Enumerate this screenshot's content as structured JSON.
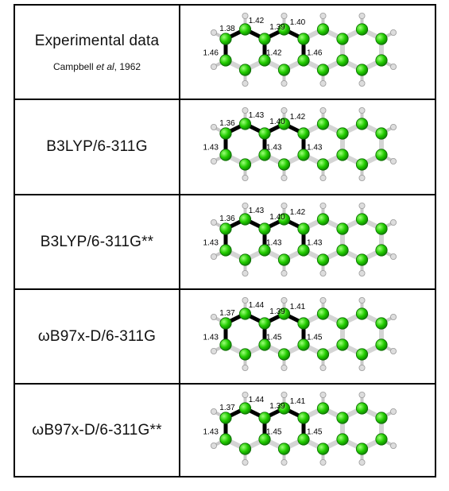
{
  "rows": [
    {
      "method": "Experimental data",
      "citation_author": "Campbell",
      "citation_etal": "et al",
      "citation_year": ", 1962",
      "bond_lengths": {
        "left_top": "1.38",
        "top_a": "1.42",
        "top_b": "1.39",
        "top_c": "1.40",
        "left_side": "1.46",
        "mid": "1.42",
        "right_side": "1.46"
      }
    },
    {
      "method": "B3LYP/6-311G",
      "bond_lengths": {
        "left_top": "1.36",
        "top_a": "1.43",
        "top_b": "1.40",
        "top_c": "1.42",
        "left_side": "1.43",
        "mid": "1.43",
        "right_side": "1.43"
      }
    },
    {
      "method": "B3LYP/6-311G**",
      "bond_lengths": {
        "left_top": "1.36",
        "top_a": "1.43",
        "top_b": "1.40",
        "top_c": "1.42",
        "left_side": "1.43",
        "mid": "1.43",
        "right_side": "1.43"
      }
    },
    {
      "method": "ωB97x-D/6-311G",
      "bond_lengths": {
        "left_top": "1.37",
        "top_a": "1.44",
        "top_b": "1.39",
        "top_c": "1.41",
        "left_side": "1.43",
        "mid": "1.45",
        "right_side": "1.45"
      }
    },
    {
      "method": "ωB97x-D/6-311G**",
      "bond_lengths": {
        "left_top": "1.37",
        "top_a": "1.44",
        "top_b": "1.39",
        "top_c": "1.41",
        "left_side": "1.43",
        "mid": "1.45",
        "right_side": "1.45"
      }
    }
  ],
  "colors": {
    "carbon": "#22cc00",
    "carbon_edge": "#0b6b00",
    "hydrogen": "#dddddd",
    "bond_highlight": "#000000",
    "bond_normal": "#d4d4d4"
  }
}
